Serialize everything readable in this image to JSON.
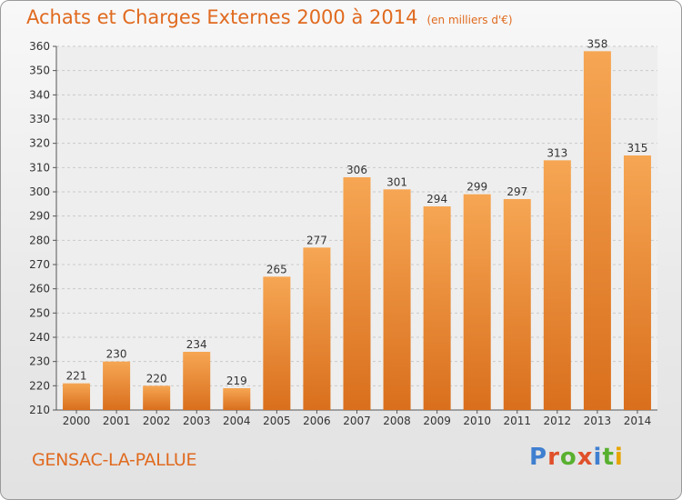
{
  "title": "Achats et Charges Externes 2000 à 2014",
  "title_unit": "(en milliers d'€)",
  "location": "GENSAC-LA-PALLUE",
  "brand": {
    "letters": [
      "P",
      "r",
      "o",
      "x",
      "i",
      "t",
      "i"
    ],
    "colors": [
      "#3f7fd0",
      "#e0502a",
      "#58b02f",
      "#e0502a",
      "#3f7fd0",
      "#58b02f",
      "#e7a400"
    ]
  },
  "colors": {
    "accent": "#e06a1f",
    "bar_top": "#f6a653",
    "bar_bottom": "#d96f1d",
    "grid": "#c9c9c9",
    "text": "#333333"
  },
  "chart_data": {
    "type": "bar",
    "title": "Achats et Charges Externes 2000 à 2014",
    "subtitle": "(en milliers d'€)",
    "categories": [
      "2000",
      "2001",
      "2002",
      "2003",
      "2004",
      "2005",
      "2006",
      "2007",
      "2008",
      "2009",
      "2010",
      "2011",
      "2012",
      "2013",
      "2014"
    ],
    "values": [
      221,
      230,
      220,
      234,
      219,
      265,
      277,
      306,
      301,
      294,
      299,
      297,
      313,
      358,
      315
    ],
    "ylim": [
      210,
      360
    ],
    "yticks": [
      210,
      220,
      230,
      240,
      250,
      260,
      270,
      280,
      290,
      300,
      310,
      320,
      330,
      340,
      350,
      360
    ],
    "grid": true,
    "xlabel": "",
    "ylabel": ""
  }
}
